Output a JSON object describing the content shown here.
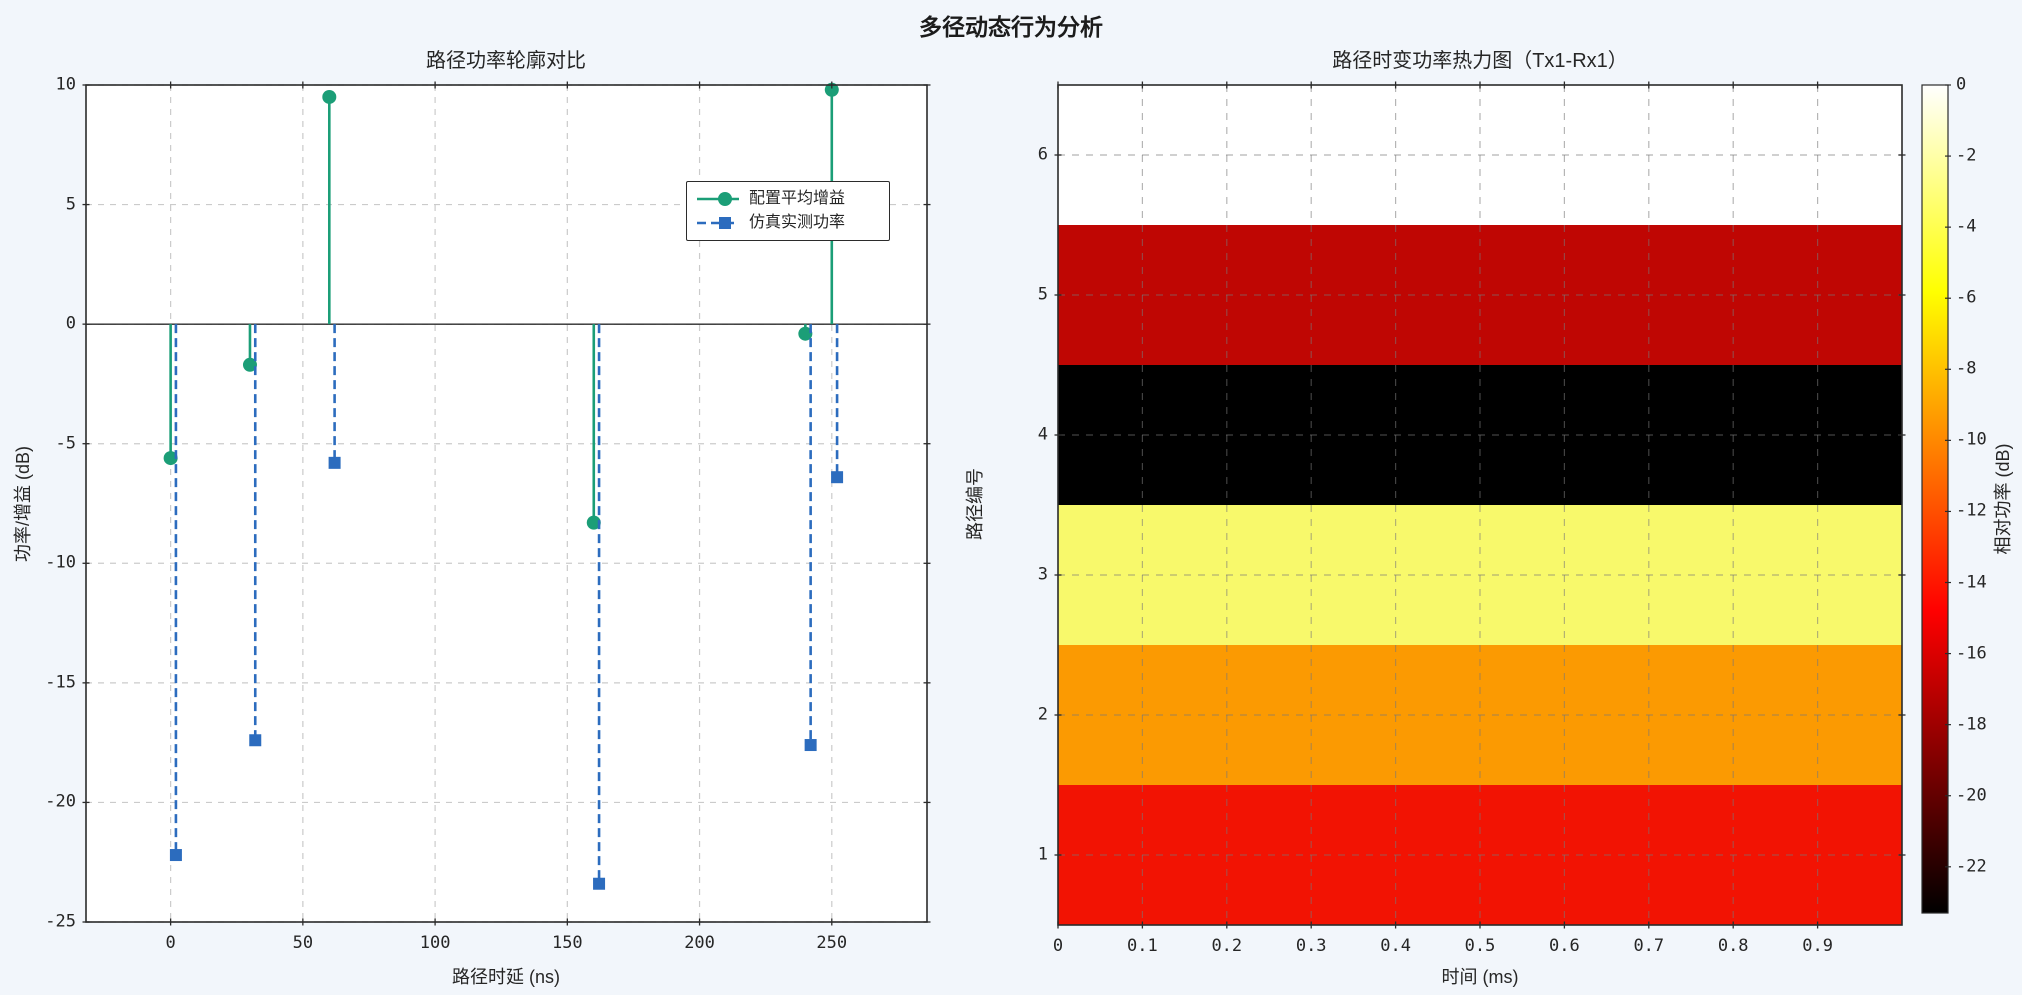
{
  "figure": {
    "suptitle": "多径动态行为分析",
    "background_color": "#f2f6fb",
    "text_color": "#262626"
  },
  "chart_data": [
    {
      "type": "stem",
      "title": "路径功率轮廓对比",
      "xlabel": "路径时延 (ns)",
      "ylabel": "功率/增益 (dB)",
      "xlim": [
        -32,
        286
      ],
      "ylim": [
        -25,
        10
      ],
      "xticks": [
        0,
        50,
        100,
        150,
        200,
        250
      ],
      "yticks": [
        10,
        5,
        0,
        -5,
        -10,
        -15,
        -20,
        -25
      ],
      "grid": true,
      "baseline_y": 0,
      "legend_position": "upper right inside",
      "series": [
        {
          "name": "配置平均增益",
          "color": "#1b9e77",
          "line_style": "solid",
          "marker": "circle",
          "x": [
            0,
            30,
            60,
            160,
            240,
            250
          ],
          "y": [
            -5.6,
            -1.7,
            9.5,
            -8.3,
            -0.4,
            9.8
          ]
        },
        {
          "name": "仿真实测功率",
          "color": "#2c6cbe",
          "line_style": "dashed",
          "marker": "square",
          "x": [
            2,
            32,
            62,
            162,
            242,
            252
          ],
          "y": [
            -22.2,
            -17.4,
            -5.8,
            -23.4,
            -17.6,
            -6.4
          ]
        }
      ]
    },
    {
      "type": "heatmap",
      "title": "路径时变功率热力图（Tx1-Rx1）",
      "xlabel": "时间 (ms)",
      "ylabel": "路径编号",
      "xlim": [
        0,
        1
      ],
      "ylim": [
        0.5,
        6.5
      ],
      "xticks": [
        0,
        0.1,
        0.2,
        0.3,
        0.4,
        0.5,
        0.6,
        0.7,
        0.8,
        0.9
      ],
      "yticks": [
        1,
        2,
        3,
        4,
        5,
        6
      ],
      "grid": true,
      "rows": [
        {
          "path": 1,
          "color": "#f21303",
          "value_db": -13.5
        },
        {
          "path": 2,
          "color": "#fb9a02",
          "value_db": -9.5
        },
        {
          "path": 3,
          "color": "#f8f96b",
          "value_db": -4.5
        },
        {
          "path": 4,
          "color": "#000000",
          "value_db": -23
        },
        {
          "path": 5,
          "color": "#bf0603",
          "value_db": -16.5
        },
        {
          "path": 6,
          "color": "#ffffff",
          "value_db": 0
        }
      ],
      "colorbar": {
        "label": "相对功率 (dB)",
        "ticks": [
          0,
          -2,
          -4,
          -6,
          -8,
          -10,
          -12,
          -14,
          -16,
          -18,
          -20,
          -22
        ],
        "range": [
          -23.3,
          0
        ],
        "colormap": "hot",
        "gradient_stops_top_to_bottom": [
          {
            "pos": 0.0,
            "color": "#ffffff"
          },
          {
            "pos": 0.25,
            "color": "#ffff00"
          },
          {
            "pos": 0.635,
            "color": "#ff0000"
          },
          {
            "pos": 1.0,
            "color": "#000000"
          }
        ]
      }
    }
  ]
}
